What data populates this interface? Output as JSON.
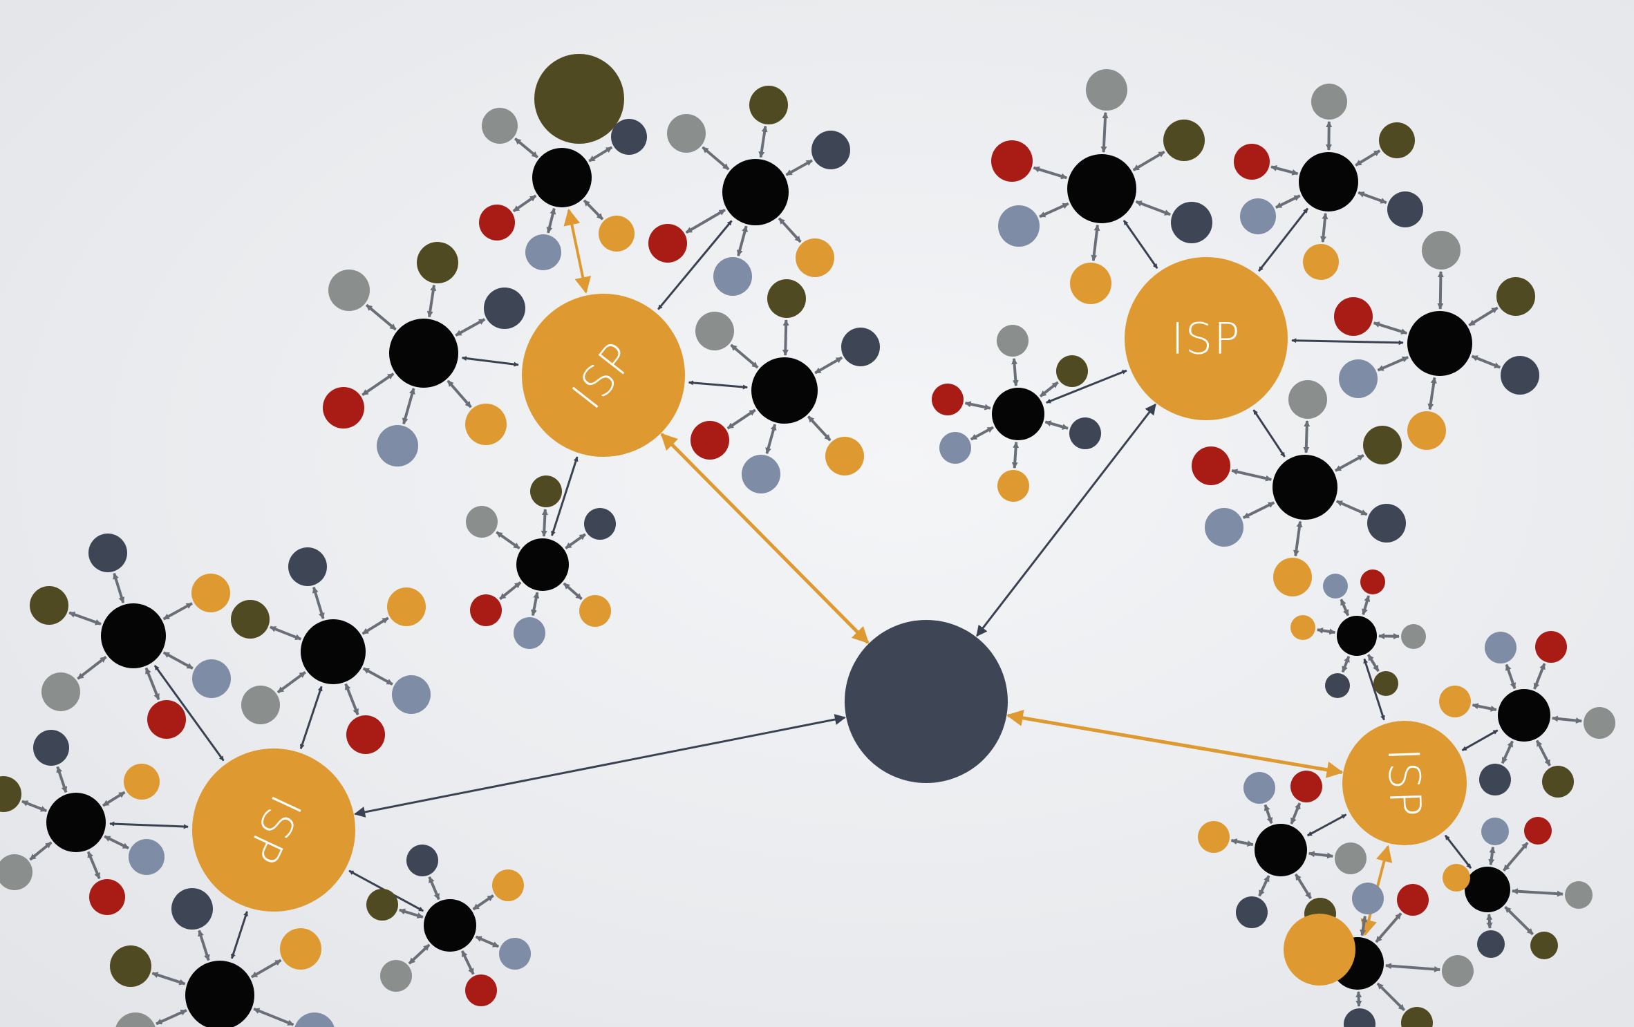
{
  "labels": {
    "isp": "ISP"
  },
  "colors": {
    "background": "#eceef1",
    "isp": "#de9a31",
    "hub": "#3e4655",
    "router": "#050505",
    "arrow_dark": "#3a4150",
    "arrow_light": "#656b73",
    "arrow_orange": "#de9a31",
    "leaf_palette": [
      "#8a8e8c",
      "#a91c16",
      "#7e8ca5",
      "#4f4a21",
      "#de9a31",
      "#3e4655"
    ]
  },
  "icons": {
    "hub": "central-hub-node",
    "isp": "isp-node",
    "router": "router-node",
    "leaf": "device-node"
  }
}
